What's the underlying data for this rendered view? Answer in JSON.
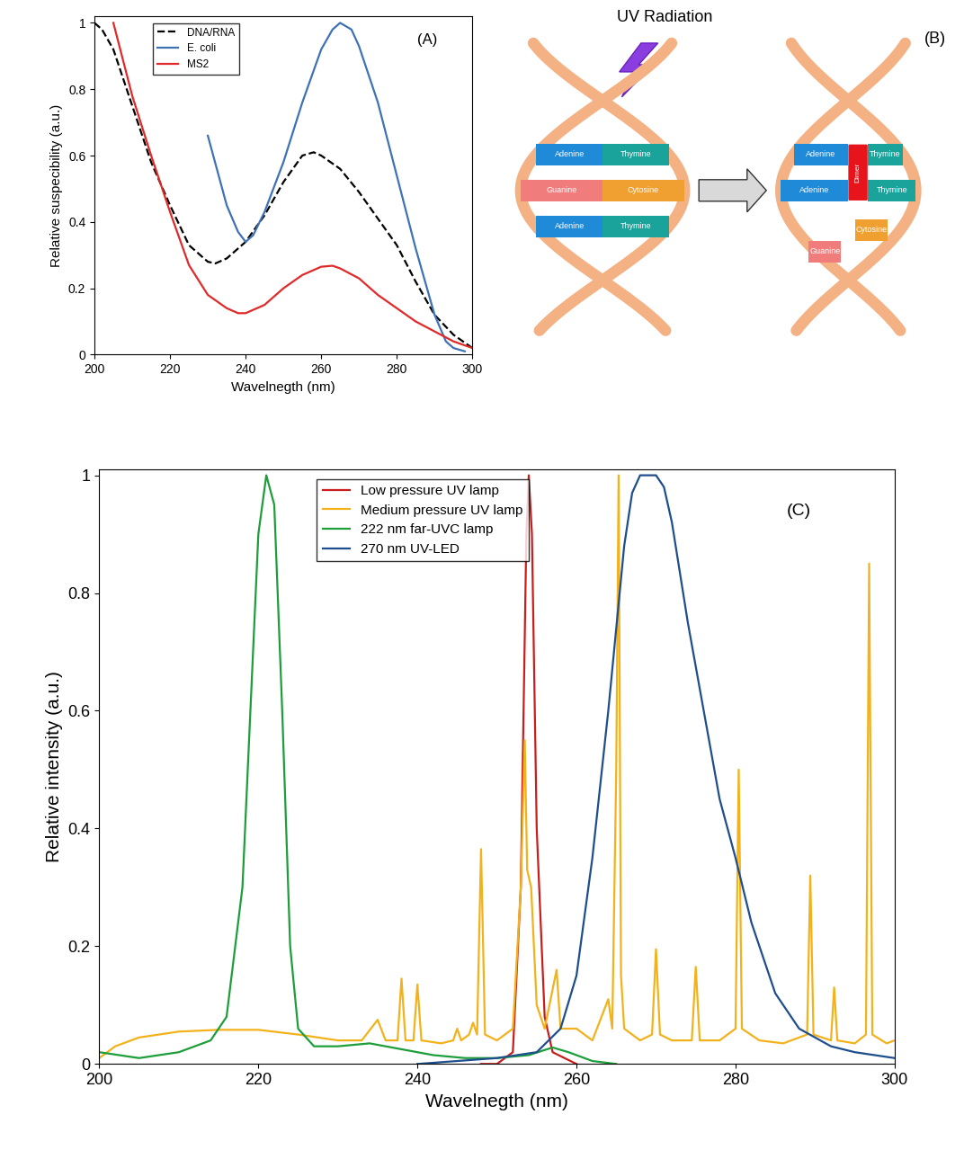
{
  "chart_data": [
    {
      "type": "line",
      "annotations": [
        "(A)"
      ],
      "x_label": "Wavelnegth (nm)",
      "y_label": "Relative suspecibility (a.u.)",
      "xlim": [
        200,
        300
      ],
      "ylim": [
        0,
        1.02
      ],
      "xticks": [
        200,
        220,
        240,
        260,
        280,
        300
      ],
      "yticks": [
        0,
        0.2,
        0.4,
        0.6,
        0.8,
        1
      ],
      "legend": "upper left",
      "series": [
        {
          "name": "DNA/RNA",
          "color": "#000000",
          "line_style": "dashed",
          "x": [
            200,
            202,
            205,
            210,
            215,
            220,
            225,
            230,
            232,
            235,
            240,
            245,
            250,
            255,
            258,
            260,
            265,
            270,
            275,
            280,
            285,
            290,
            295,
            300
          ],
          "values": [
            1.0,
            0.98,
            0.92,
            0.75,
            0.58,
            0.45,
            0.33,
            0.28,
            0.275,
            0.29,
            0.34,
            0.42,
            0.52,
            0.6,
            0.61,
            0.6,
            0.56,
            0.49,
            0.41,
            0.33,
            0.22,
            0.12,
            0.06,
            0.02
          ]
        },
        {
          "name": "E. coli",
          "color": "#3f72b5",
          "line_style": "solid",
          "x": [
            230,
            235,
            238,
            240,
            242,
            245,
            250,
            255,
            260,
            263,
            265,
            268,
            270,
            275,
            280,
            285,
            290,
            293,
            295,
            298
          ],
          "values": [
            0.66,
            0.45,
            0.37,
            0.34,
            0.36,
            0.43,
            0.58,
            0.76,
            0.92,
            0.98,
            1.0,
            0.98,
            0.93,
            0.76,
            0.54,
            0.32,
            0.12,
            0.04,
            0.02,
            0.01
          ]
        },
        {
          "name": "MS2",
          "color": "#e02a2a",
          "line_style": "solid",
          "x": [
            205,
            210,
            215,
            220,
            225,
            230,
            235,
            238,
            240,
            245,
            250,
            255,
            260,
            263,
            265,
            270,
            275,
            280,
            285,
            290,
            295,
            300
          ],
          "values": [
            1.0,
            0.78,
            0.6,
            0.43,
            0.27,
            0.18,
            0.14,
            0.125,
            0.125,
            0.15,
            0.2,
            0.24,
            0.265,
            0.268,
            0.26,
            0.23,
            0.18,
            0.14,
            0.1,
            0.07,
            0.04,
            0.02
          ]
        }
      ]
    },
    {
      "type": "line",
      "annotations": [
        "(C)"
      ],
      "x_label": "Wavelnegth (nm)",
      "y_label": "Relative intensity (a.u.)",
      "xlim": [
        200,
        300
      ],
      "ylim": [
        0,
        1.01
      ],
      "xticks": [
        200,
        220,
        240,
        260,
        280,
        300
      ],
      "yticks": [
        0,
        0.2,
        0.4,
        0.6,
        0.8,
        1
      ],
      "legend": "upper left",
      "series": [
        {
          "name": "Low pressure UV lamp",
          "color": "#c81e1e",
          "line_style": "solid",
          "x": [
            248,
            250,
            252,
            253,
            253.7,
            254,
            254.4,
            255,
            256,
            257,
            260
          ],
          "values": [
            0,
            0,
            0.02,
            0.3,
            0.9,
            1.0,
            0.9,
            0.4,
            0.08,
            0.02,
            0
          ]
        },
        {
          "name": "Medium pressure UV lamp",
          "color": "#f2b21b",
          "line_style": "solid",
          "x": [
            200,
            202,
            205,
            210,
            215,
            220,
            225,
            230,
            233,
            235,
            236,
            237.5,
            238,
            238.5,
            239.5,
            240,
            240.5,
            243,
            244.5,
            245,
            245.5,
            246.5,
            247,
            247.5,
            248,
            248.5,
            250,
            252,
            253,
            253.5,
            253.8,
            254.3,
            255,
            256,
            257.5,
            258,
            260,
            262,
            264,
            264.5,
            265,
            265.3,
            265.6,
            266,
            268,
            269.5,
            270,
            270.5,
            272,
            274.5,
            275,
            275.5,
            278,
            280,
            280.4,
            280.8,
            283,
            286,
            289,
            289.4,
            289.8,
            292,
            292.4,
            292.8,
            295,
            296.4,
            296.8,
            297.2,
            299,
            300
          ],
          "values": [
            0.01,
            0.03,
            0.045,
            0.055,
            0.058,
            0.058,
            0.05,
            0.04,
            0.04,
            0.075,
            0.04,
            0.04,
            0.145,
            0.04,
            0.04,
            0.135,
            0.04,
            0.035,
            0.04,
            0.06,
            0.04,
            0.05,
            0.07,
            0.05,
            0.365,
            0.05,
            0.04,
            0.06,
            0.3,
            0.55,
            0.33,
            0.3,
            0.1,
            0.06,
            0.16,
            0.06,
            0.06,
            0.04,
            0.11,
            0.06,
            0.5,
            1.0,
            0.15,
            0.06,
            0.04,
            0.05,
            0.195,
            0.05,
            0.04,
            0.04,
            0.165,
            0.04,
            0.04,
            0.06,
            0.5,
            0.06,
            0.04,
            0.035,
            0.05,
            0.32,
            0.05,
            0.04,
            0.13,
            0.04,
            0.035,
            0.05,
            0.85,
            0.05,
            0.035,
            0.04
          ]
        },
        {
          "name": "222 nm far-UVC lamp",
          "color": "#1e9e3a",
          "line_style": "solid",
          "x": [
            200,
            205,
            210,
            214,
            216,
            218,
            219,
            220,
            221,
            222,
            223,
            224,
            225,
            227,
            230,
            234,
            238,
            242,
            246,
            250,
            254,
            257,
            259,
            262,
            265
          ],
          "values": [
            0.02,
            0.01,
            0.02,
            0.04,
            0.08,
            0.3,
            0.6,
            0.9,
            1.0,
            0.95,
            0.6,
            0.2,
            0.06,
            0.03,
            0.03,
            0.035,
            0.025,
            0.015,
            0.01,
            0.01,
            0.015,
            0.028,
            0.02,
            0.005,
            0
          ]
        },
        {
          "name": "270 nm UV-LED",
          "color": "#1f4e8c",
          "line_style": "solid",
          "x": [
            240,
            245,
            250,
            255,
            258,
            260,
            262,
            264,
            266,
            267,
            268,
            270,
            271,
            272,
            274,
            276,
            278,
            280,
            282,
            285,
            288,
            292,
            295,
            300
          ],
          "values": [
            0,
            0.005,
            0.01,
            0.02,
            0.06,
            0.15,
            0.35,
            0.6,
            0.88,
            0.97,
            1.0,
            1.0,
            0.98,
            0.92,
            0.75,
            0.6,
            0.45,
            0.35,
            0.24,
            0.12,
            0.06,
            0.03,
            0.02,
            0.01
          ]
        }
      ]
    }
  ],
  "diagram": {
    "label": "(B)",
    "title": "UV Radiation",
    "before": {
      "pairs": [
        [
          {
            "name": "Adenine",
            "color": "#1f8ad8"
          },
          {
            "name": "Thymine",
            "color": "#1aa39a"
          }
        ],
        [
          {
            "name": "Guanine",
            "color": "#f07c7c"
          },
          {
            "name": "Cytosine",
            "color": "#f0a030"
          }
        ],
        [
          {
            "name": "Adenine",
            "color": "#1f8ad8"
          },
          {
            "name": "Thymine",
            "color": "#1aa39a"
          }
        ]
      ]
    },
    "after": {
      "pairs": [
        [
          {
            "name": "Adenine",
            "color": "#1f8ad8"
          },
          {
            "name": "Thymine",
            "color": "#1aa39a"
          }
        ],
        [
          {
            "name": "Adenine",
            "color": "#1f8ad8"
          },
          {
            "name": "Thymine",
            "color": "#1aa39a"
          }
        ]
      ],
      "dimer": {
        "name": "Dimer",
        "color": "#e8141c"
      },
      "broken_pair": [
        {
          "name": "Guanine",
          "color": "#f07c7c"
        },
        {
          "name": "Cytosine",
          "color": "#f0a030"
        }
      ]
    }
  }
}
